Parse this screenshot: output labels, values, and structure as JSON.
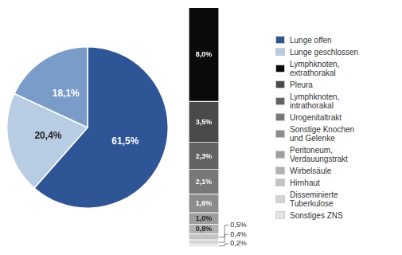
{
  "chart_data": [
    {
      "type": "pie",
      "categories": [
        "Lunge offen",
        "Lunge geschlossen",
        null
      ],
      "values": [
        61.5,
        20.4,
        18.1
      ],
      "value_labels": [
        "61,5%",
        "20,4%",
        "18,1%"
      ],
      "colors": [
        "#2E5596",
        "#B8CCE4",
        "#7A9CC8"
      ],
      "data_labels": true,
      "legend": "right"
    },
    {
      "type": "bar",
      "stacked": true,
      "categories": [
        null
      ],
      "ylim": [
        0,
        20.4
      ],
      "grid": false,
      "tick_labels": false,
      "data_labels": true,
      "legend": "right",
      "series": [
        {
          "name": "Lymphknoten,\nextrathorakal",
          "color": "#0a0a0a",
          "values": [
            8.0
          ],
          "value_labels": [
            "8,0%"
          ]
        },
        {
          "name": "Pleura",
          "color": "#4a4a4a",
          "values": [
            3.5
          ],
          "value_labels": [
            "3,5%"
          ]
        },
        {
          "name": "Lymphknoten,\nintrathorakal",
          "color": "#636363",
          "values": [
            2.3
          ],
          "value_labels": [
            "2,3%"
          ]
        },
        {
          "name": "Urogenitaltrakt",
          "color": "#787878",
          "values": [
            2.1
          ],
          "value_labels": [
            "2,1%"
          ]
        },
        {
          "name": "Sonstige Knochen\nund Gelenke",
          "color": "#8c8c8c",
          "values": [
            1.6
          ],
          "value_labels": [
            "1,6%"
          ]
        },
        {
          "name": "Peritoneum,\nVerdauungstrakt",
          "color": "#9e9e9e",
          "values": [
            1.0
          ],
          "value_labels": [
            "1,0%"
          ]
        },
        {
          "name": "Wirbelsäule",
          "color": "#b2b2b2",
          "values": [
            0.8
          ],
          "value_labels": [
            "0,8%"
          ]
        },
        {
          "name": "Hirnhaut",
          "color": "#c3c3c3",
          "values": [
            0.5
          ],
          "value_labels": [
            "0,5%"
          ]
        },
        {
          "name": "Disseminierte\nTuberkulose",
          "color": "#d4d4d4",
          "values": [
            0.4
          ],
          "value_labels": [
            "0,4%"
          ]
        },
        {
          "name": "Sonstiges ZNS",
          "color": "#e5e5e5",
          "values": [
            0.2
          ],
          "value_labels": [
            "0,2%"
          ]
        }
      ]
    }
  ]
}
